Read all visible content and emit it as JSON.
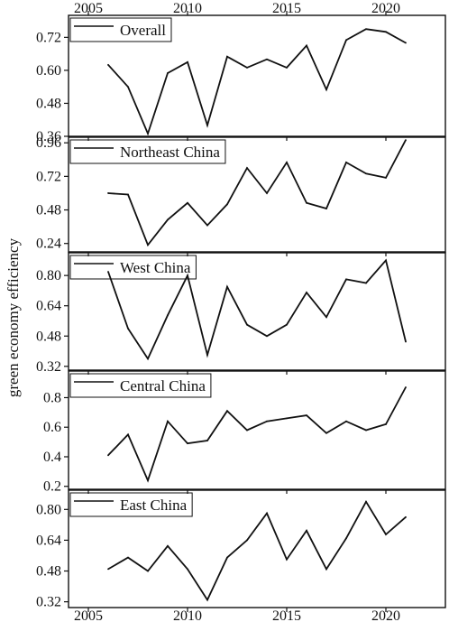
{
  "figure": {
    "ylabel": "green economy efficiency",
    "x_ticks": [
      2005,
      2010,
      2015,
      2020
    ]
  },
  "chart_data": [
    {
      "type": "line",
      "legend": "Overall",
      "x": [
        2006,
        2007,
        2008,
        2009,
        2010,
        2011,
        2012,
        2013,
        2014,
        2015,
        2016,
        2017,
        2018,
        2019,
        2020,
        2021
      ],
      "series": [
        {
          "name": "Overall",
          "values": [
            0.62,
            0.54,
            0.37,
            0.59,
            0.63,
            0.4,
            0.65,
            0.61,
            0.64,
            0.61,
            0.69,
            0.53,
            0.71,
            0.75,
            0.74,
            0.7
          ]
        }
      ],
      "ylim": [
        0.36,
        0.8
      ],
      "yticks": [
        0.36,
        0.48,
        0.6,
        0.72
      ],
      "ytick_labels": [
        "0.36",
        "0.48",
        "0.60",
        "0.72"
      ],
      "xlim": [
        2004,
        2023
      ],
      "xticks": [
        2005,
        2010,
        2015,
        2020
      ],
      "legend_position": "top-left"
    },
    {
      "type": "line",
      "legend": "Northeast China",
      "x": [
        2006,
        2007,
        2008,
        2009,
        2010,
        2011,
        2012,
        2013,
        2014,
        2015,
        2016,
        2017,
        2018,
        2019,
        2020,
        2021
      ],
      "series": [
        {
          "name": "Northeast China",
          "values": [
            0.6,
            0.59,
            0.23,
            0.41,
            0.53,
            0.37,
            0.52,
            0.78,
            0.6,
            0.82,
            0.53,
            0.49,
            0.82,
            0.74,
            0.71,
            0.98
          ]
        }
      ],
      "ylim": [
        0.18,
        1.0
      ],
      "yticks": [
        0.24,
        0.48,
        0.72,
        0.96
      ],
      "ytick_labels": [
        "0.24",
        "0.48",
        "0.72",
        "0.96"
      ],
      "xlim": [
        2004,
        2023
      ],
      "xticks": [
        2005,
        2010,
        2015,
        2020
      ],
      "legend_position": "top-left"
    },
    {
      "type": "line",
      "legend": "West China",
      "x": [
        2006,
        2007,
        2008,
        2009,
        2010,
        2011,
        2012,
        2013,
        2014,
        2015,
        2016,
        2017,
        2018,
        2019,
        2020,
        2021
      ],
      "series": [
        {
          "name": "West China",
          "values": [
            0.82,
            0.52,
            0.36,
            0.59,
            0.8,
            0.38,
            0.74,
            0.54,
            0.48,
            0.54,
            0.71,
            0.58,
            0.78,
            0.76,
            0.88,
            0.45
          ]
        }
      ],
      "ylim": [
        0.3,
        0.92
      ],
      "yticks": [
        0.32,
        0.48,
        0.64,
        0.8
      ],
      "ytick_labels": [
        "0.32",
        "0.48",
        "0.64",
        "0.80"
      ],
      "xlim": [
        2004,
        2023
      ],
      "xticks": [
        2005,
        2010,
        2015,
        2020
      ],
      "legend_position": "top-left"
    },
    {
      "type": "line",
      "legend": "Central China",
      "x": [
        2006,
        2007,
        2008,
        2009,
        2010,
        2011,
        2012,
        2013,
        2014,
        2015,
        2016,
        2017,
        2018,
        2019,
        2020,
        2021
      ],
      "series": [
        {
          "name": "Central China",
          "values": [
            0.41,
            0.55,
            0.24,
            0.64,
            0.49,
            0.51,
            0.71,
            0.58,
            0.64,
            0.66,
            0.68,
            0.56,
            0.64,
            0.58,
            0.62,
            0.87
          ]
        }
      ],
      "ylim": [
        0.18,
        0.98
      ],
      "yticks": [
        0.2,
        0.4,
        0.6,
        0.8
      ],
      "ytick_labels": [
        "0.2",
        "0.4",
        "0.6",
        "0.8"
      ],
      "xlim": [
        2004,
        2023
      ],
      "xticks": [
        2005,
        2010,
        2015,
        2020
      ],
      "legend_position": "top-left"
    },
    {
      "type": "line",
      "legend": "East China",
      "x": [
        2006,
        2007,
        2008,
        2009,
        2010,
        2011,
        2012,
        2013,
        2014,
        2015,
        2016,
        2017,
        2018,
        2019,
        2020,
        2021
      ],
      "series": [
        {
          "name": "East China",
          "values": [
            0.49,
            0.55,
            0.48,
            0.61,
            0.49,
            0.33,
            0.55,
            0.64,
            0.78,
            0.54,
            0.69,
            0.49,
            0.65,
            0.84,
            0.67,
            0.76
          ]
        }
      ],
      "ylim": [
        0.29,
        0.9
      ],
      "yticks": [
        0.32,
        0.48,
        0.64,
        0.8
      ],
      "ytick_labels": [
        "0.32",
        "0.48",
        "0.64",
        "0.80"
      ],
      "xlim": [
        2004,
        2023
      ],
      "xticks": [
        2005,
        2010,
        2015,
        2020
      ],
      "legend_position": "top-left"
    }
  ]
}
